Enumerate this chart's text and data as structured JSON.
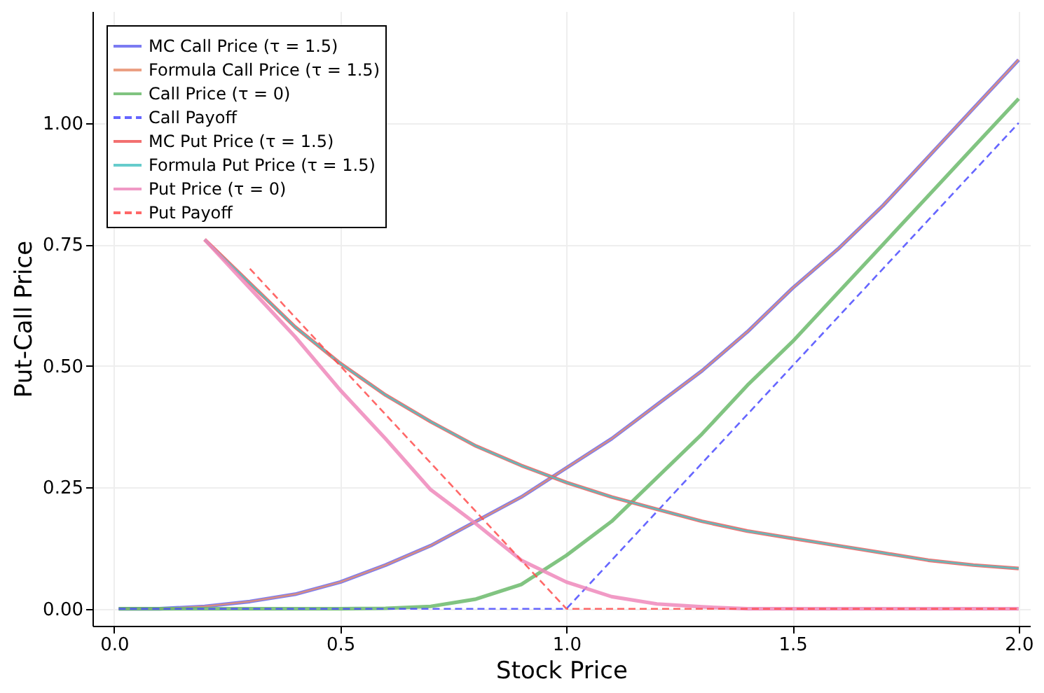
{
  "chart_data": {
    "type": "line",
    "xlabel": "Stock Price",
    "ylabel": "Put-Call Price",
    "x": [
      0.01,
      0.1,
      0.2,
      0.3,
      0.4,
      0.5,
      0.6,
      0.7,
      0.8,
      0.9,
      1.0,
      1.1,
      1.2,
      1.3,
      1.4,
      1.5,
      1.6,
      1.7,
      1.8,
      1.9,
      2.0
    ],
    "series": [
      {
        "name": "MC Call Price (τ = 1.5)",
        "color": "#6464f0",
        "line_style": "solid",
        "values": [
          0,
          0,
          0.005,
          0.015,
          0.03,
          0.055,
          0.09,
          0.13,
          0.18,
          0.23,
          0.29,
          0.35,
          0.42,
          0.49,
          0.57,
          0.66,
          0.74,
          0.83,
          0.93,
          1.03,
          1.13
        ]
      },
      {
        "name": "Formula Call Price (τ = 1.5)",
        "color": "#e8906e",
        "line_style": "solid",
        "values": [
          0,
          0,
          0.005,
          0.015,
          0.03,
          0.055,
          0.09,
          0.13,
          0.18,
          0.23,
          0.29,
          0.35,
          0.42,
          0.49,
          0.57,
          0.66,
          0.74,
          0.83,
          0.93,
          1.03,
          1.13
        ]
      },
      {
        "name": "Call Price (τ = 0)",
        "color": "#6bba6b",
        "line_style": "solid",
        "values": [
          0,
          0,
          0,
          0,
          0,
          0,
          0.001,
          0.005,
          0.02,
          0.05,
          0.11,
          0.18,
          0.27,
          0.36,
          0.46,
          0.55,
          0.65,
          0.75,
          0.85,
          0.95,
          1.05
        ]
      },
      {
        "name": "Call Payoff",
        "color": "#4b4bff",
        "line_style": "dashed",
        "values": [
          0,
          0,
          0,
          0,
          0,
          0,
          0,
          0,
          0,
          0,
          0,
          0.1,
          0.2,
          0.3,
          0.4,
          0.5,
          0.6,
          0.7,
          0.8,
          0.9,
          1.0
        ]
      },
      {
        "name": "MC Put Price (τ = 1.5)",
        "color": "#f05858",
        "line_style": "solid",
        "values": [
          null,
          null,
          0.76,
          0.67,
          0.58,
          0.505,
          0.44,
          0.385,
          0.335,
          0.295,
          0.26,
          0.23,
          0.205,
          0.18,
          0.16,
          0.145,
          0.13,
          0.115,
          0.1,
          0.09,
          0.083
        ]
      },
      {
        "name": "Formula Put Price (τ = 1.5)",
        "color": "#4cc4c4",
        "line_style": "solid",
        "values": [
          null,
          null,
          0.76,
          0.67,
          0.58,
          0.505,
          0.44,
          0.385,
          0.335,
          0.295,
          0.26,
          0.23,
          0.205,
          0.18,
          0.16,
          0.145,
          0.13,
          0.115,
          0.1,
          0.09,
          0.083
        ]
      },
      {
        "name": "Put Price (τ = 0)",
        "color": "#ee88bb",
        "line_style": "solid",
        "values": [
          null,
          null,
          0.76,
          0.66,
          0.56,
          0.45,
          0.35,
          0.245,
          0.175,
          0.1,
          0.055,
          0.025,
          0.01,
          0.004,
          0,
          0,
          0,
          0,
          0,
          0,
          0
        ]
      },
      {
        "name": "Put Payoff",
        "color": "#ff4d4d",
        "line_style": "dashed",
        "values": [
          null,
          null,
          null,
          0.7,
          0.6,
          0.5,
          0.4,
          0.3,
          0.2,
          0.1,
          0,
          0,
          0,
          0,
          0,
          0,
          0,
          0,
          0,
          0,
          0
        ]
      }
    ],
    "xlim": [
      -0.048,
      2.025
    ],
    "ylim": [
      -0.035,
      1.23
    ],
    "xticks": [
      {
        "value": 0,
        "label": "0.0"
      },
      0.5,
      {
        "value": 1,
        "label": "1.0"
      },
      1.5,
      {
        "value": 2,
        "label": "2.0"
      }
    ],
    "yticks": [
      {
        "value": 0,
        "label": "0.00"
      },
      0.25,
      {
        "value": 0.5,
        "label": "0.50"
      },
      0.75,
      {
        "value": 1,
        "label": "1.00"
      }
    ],
    "grid": true,
    "legend": "top left"
  }
}
